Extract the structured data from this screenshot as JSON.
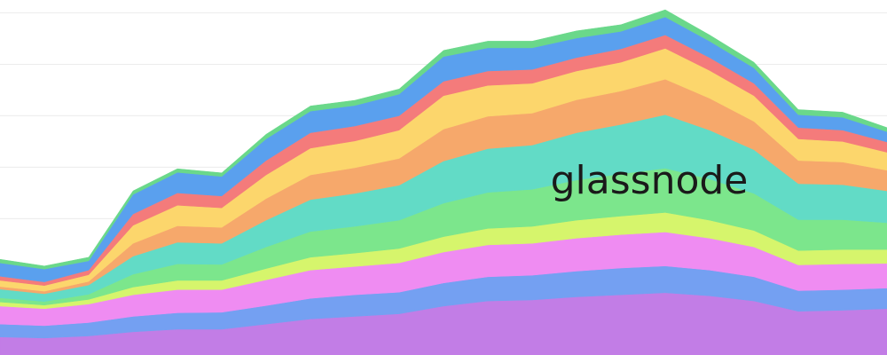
{
  "chart_data": {
    "type": "area",
    "stacked": true,
    "watermark": "glassnode",
    "categories": [
      null,
      null,
      null,
      null,
      null,
      null,
      null,
      null,
      null,
      null,
      null,
      null,
      null,
      null,
      null,
      null,
      null,
      null,
      null,
      null,
      null
    ],
    "ylim": [
      0.35,
      7.25
    ],
    "yticks": [
      1,
      2,
      3,
      4,
      5,
      6,
      7
    ],
    "grid": true,
    "series": [
      {
        "color": "#c27de6",
        "values": [
          0.7,
          0.68,
          0.72,
          0.8,
          0.85,
          0.85,
          0.95,
          1.05,
          1.1,
          1.15,
          1.3,
          1.4,
          1.42,
          1.48,
          1.52,
          1.56,
          1.5,
          1.4,
          1.2,
          1.22,
          1.25
        ]
      },
      {
        "color": "#74a0f2",
        "values": [
          0.25,
          0.24,
          0.26,
          0.3,
          0.32,
          0.33,
          0.36,
          0.4,
          0.42,
          0.42,
          0.45,
          0.47,
          0.48,
          0.5,
          0.52,
          0.52,
          0.5,
          0.47,
          0.4,
          0.4,
          0.4
        ]
      },
      {
        "color": "#ef8cf2",
        "values": [
          0.35,
          0.33,
          0.36,
          0.42,
          0.45,
          0.44,
          0.5,
          0.55,
          0.55,
          0.57,
          0.6,
          0.62,
          0.62,
          0.64,
          0.65,
          0.66,
          0.62,
          0.58,
          0.5,
          0.5,
          0.48
        ]
      },
      {
        "color": "#d6f56c",
        "values": [
          0.08,
          0.07,
          0.09,
          0.15,
          0.18,
          0.18,
          0.22,
          0.25,
          0.26,
          0.28,
          0.3,
          0.32,
          0.33,
          0.35,
          0.36,
          0.38,
          0.35,
          0.32,
          0.28,
          0.28,
          0.27
        ]
      },
      {
        "color": "#7ce68c",
        "values": [
          0.08,
          0.07,
          0.1,
          0.25,
          0.32,
          0.31,
          0.42,
          0.5,
          0.52,
          0.55,
          0.65,
          0.7,
          0.72,
          0.78,
          0.82,
          0.86,
          0.8,
          0.72,
          0.6,
          0.58,
          0.52
        ]
      },
      {
        "color": "#62dbc6",
        "values": [
          0.17,
          0.15,
          0.18,
          0.35,
          0.42,
          0.41,
          0.52,
          0.62,
          0.64,
          0.68,
          0.82,
          0.85,
          0.86,
          0.92,
          0.96,
          1.04,
          0.95,
          0.85,
          0.7,
          0.68,
          0.62
        ]
      },
      {
        "color": "#f6a86b",
        "values": [
          0.05,
          0.05,
          0.07,
          0.25,
          0.32,
          0.31,
          0.42,
          0.48,
          0.5,
          0.52,
          0.62,
          0.63,
          0.62,
          0.64,
          0.65,
          0.69,
          0.62,
          0.55,
          0.45,
          0.44,
          0.4
        ]
      },
      {
        "color": "#fcd66c",
        "values": [
          0.12,
          0.11,
          0.13,
          0.35,
          0.4,
          0.38,
          0.46,
          0.52,
          0.52,
          0.55,
          0.65,
          0.6,
          0.58,
          0.56,
          0.56,
          0.6,
          0.54,
          0.5,
          0.42,
          0.4,
          0.35
        ]
      },
      {
        "color": "#f47b7b",
        "values": [
          0.08,
          0.07,
          0.09,
          0.22,
          0.24,
          0.23,
          0.28,
          0.3,
          0.29,
          0.28,
          0.28,
          0.28,
          0.27,
          0.26,
          0.26,
          0.26,
          0.25,
          0.24,
          0.22,
          0.22,
          0.2
        ]
      },
      {
        "color": "#5aa0ee",
        "values": [
          0.26,
          0.25,
          0.18,
          0.38,
          0.4,
          0.38,
          0.42,
          0.42,
          0.4,
          0.42,
          0.48,
          0.45,
          0.42,
          0.38,
          0.34,
          0.35,
          0.32,
          0.3,
          0.25,
          0.25,
          0.2
        ]
      },
      {
        "color": "#6ad88a",
        "values": [
          0.07,
          0.06,
          0.07,
          0.07,
          0.07,
          0.07,
          0.09,
          0.1,
          0.1,
          0.1,
          0.12,
          0.13,
          0.13,
          0.14,
          0.13,
          0.14,
          0.12,
          0.11,
          0.1,
          0.1,
          0.08
        ]
      }
    ]
  }
}
